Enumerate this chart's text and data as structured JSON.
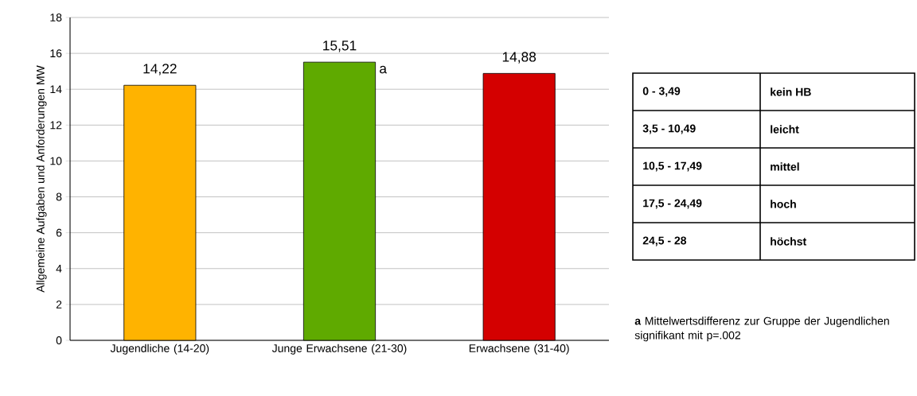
{
  "chart_data": {
    "type": "bar",
    "ylabel": "Allgemeine Aufgaben und Anforderungen MW",
    "categories": [
      "Jugendliche (14-20)",
      "Junge Erwachsene (21-30)",
      "Erwachsene (31-40)"
    ],
    "values": [
      14.22,
      15.51,
      14.88
    ],
    "value_labels": [
      "14,22",
      "15,51",
      "14,88"
    ],
    "colors": [
      "#ffb300",
      "#5faa00",
      "#d40000"
    ],
    "ylim": [
      0,
      18
    ],
    "yticks": [
      0,
      2,
      4,
      6,
      8,
      10,
      12,
      14,
      16,
      18
    ],
    "grid": "y",
    "annotations": [
      {
        "text": "a",
        "x": "Junge Erwachsene (21-30)",
        "y": 15.51
      },
      "0 - 3,49",
      "kein HB",
      "3,5 - 10,49",
      "leicht",
      "10,5 - 17,49",
      "mittel",
      "17,5 - 24,49",
      "hoch",
      "24,5 - 28",
      "höchst",
      "**a** Mittelwertsdifferenz zur Gruppe der Jugendlichen signifikant mit p=.002"
    ]
  }
}
